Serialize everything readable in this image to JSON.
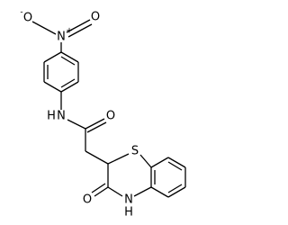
{
  "atoms": [
    {
      "label": "O",
      "charge": "-"
    },
    {
      "label": "N",
      "charge": "+"
    },
    {
      "label": "O"
    },
    {
      "label": "N",
      "h": "H"
    },
    {
      "label": "O"
    },
    {
      "label": "S"
    },
    {
      "label": "O"
    },
    {
      "label": "N",
      "h": "H"
    }
  ]
}
